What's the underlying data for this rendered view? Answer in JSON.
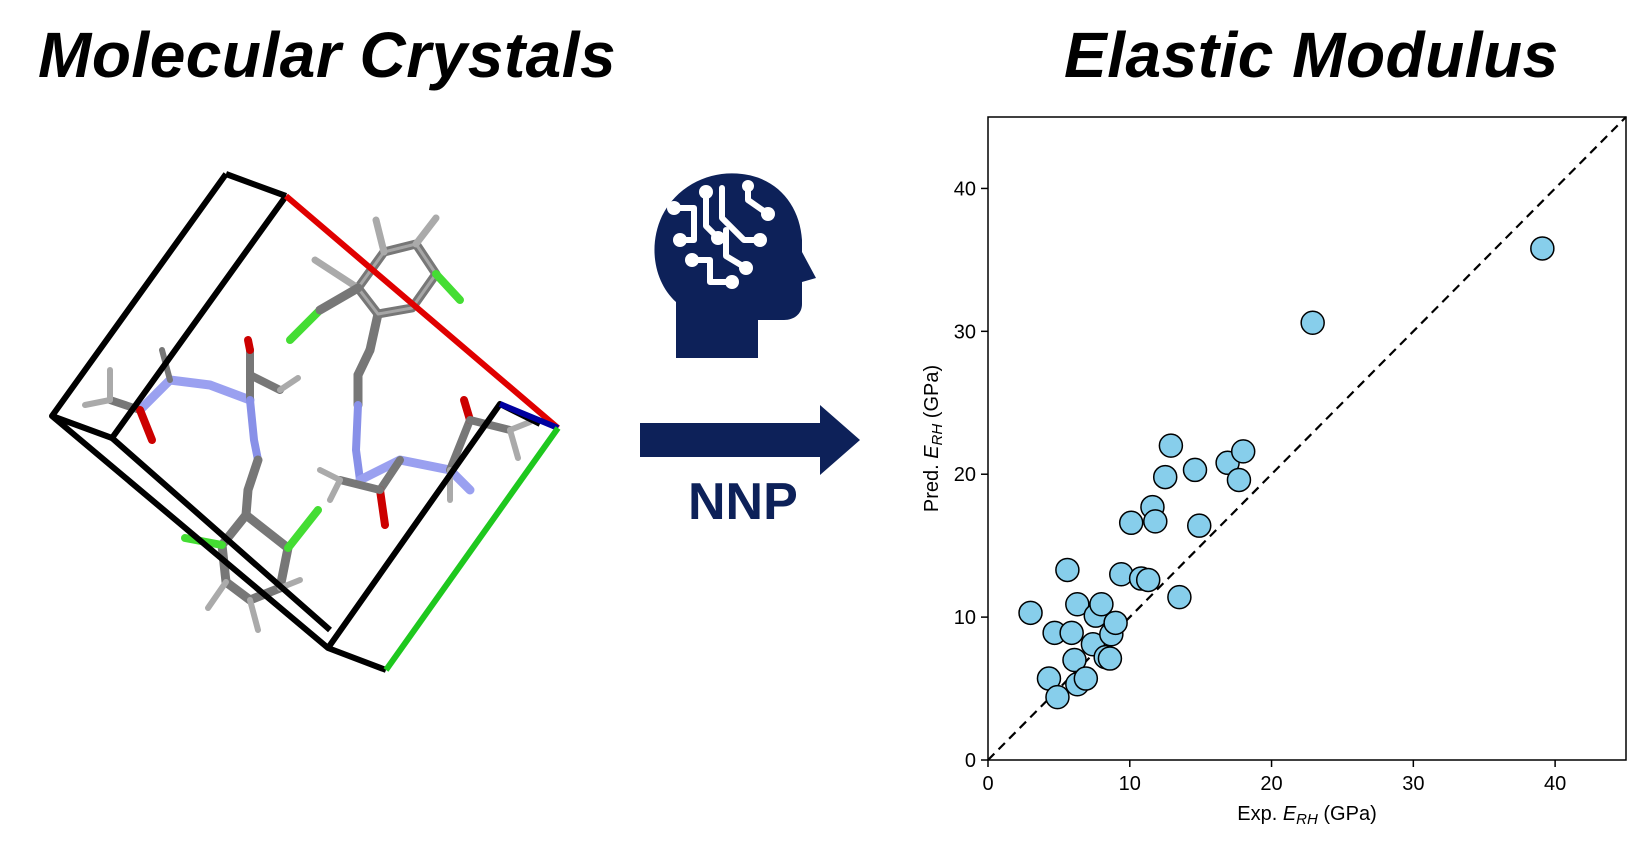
{
  "headings": {
    "left": "Molecular Crystals",
    "right": "Elastic Modulus"
  },
  "model": {
    "label": "NNP",
    "icon": "ai-head-circuit-icon",
    "color": "#0d2159"
  },
  "crystal": {
    "icon": "molecular-crystal-unit-cell",
    "axis_colors": {
      "a": "#e00000",
      "b": "#1ec81e",
      "c": "#0000a0"
    }
  },
  "chart_data": {
    "type": "scatter",
    "xlabel_prefix": "Exp. ",
    "xlabel_var": "E",
    "xlabel_sub": "RH",
    "xlabel_suffix": " (GPa)",
    "ylabel_prefix": "Pred. ",
    "ylabel_var": "E",
    "ylabel_sub": "RH",
    "ylabel_suffix": " (GPa)",
    "xlim": [
      0,
      45
    ],
    "ylim": [
      0,
      45
    ],
    "xticks": [
      0,
      10,
      20,
      30,
      40
    ],
    "yticks": [
      0,
      10,
      20,
      30,
      40
    ],
    "diagonal": true,
    "marker_color": "#87ceeb",
    "points": [
      {
        "x": 3.0,
        "y": 10.3
      },
      {
        "x": 4.3,
        "y": 5.7
      },
      {
        "x": 4.7,
        "y": 8.9
      },
      {
        "x": 4.9,
        "y": 4.4
      },
      {
        "x": 5.6,
        "y": 13.3
      },
      {
        "x": 5.9,
        "y": 8.9
      },
      {
        "x": 6.1,
        "y": 7.0
      },
      {
        "x": 6.3,
        "y": 5.3
      },
      {
        "x": 6.3,
        "y": 10.9
      },
      {
        "x": 6.9,
        "y": 5.7
      },
      {
        "x": 7.4,
        "y": 8.1
      },
      {
        "x": 7.6,
        "y": 10.1
      },
      {
        "x": 8.0,
        "y": 10.9
      },
      {
        "x": 8.3,
        "y": 7.2
      },
      {
        "x": 8.6,
        "y": 7.1
      },
      {
        "x": 8.7,
        "y": 8.8
      },
      {
        "x": 9.0,
        "y": 9.6
      },
      {
        "x": 9.4,
        "y": 13.0
      },
      {
        "x": 10.1,
        "y": 16.6
      },
      {
        "x": 10.8,
        "y": 12.7
      },
      {
        "x": 11.3,
        "y": 12.6
      },
      {
        "x": 11.6,
        "y": 17.7
      },
      {
        "x": 11.8,
        "y": 16.7
      },
      {
        "x": 12.5,
        "y": 19.8
      },
      {
        "x": 12.9,
        "y": 22.0
      },
      {
        "x": 13.5,
        "y": 11.4
      },
      {
        "x": 14.6,
        "y": 20.3
      },
      {
        "x": 14.9,
        "y": 16.4
      },
      {
        "x": 16.9,
        "y": 20.8
      },
      {
        "x": 17.7,
        "y": 19.6
      },
      {
        "x": 18.0,
        "y": 21.6
      },
      {
        "x": 22.9,
        "y": 30.6
      },
      {
        "x": 39.1,
        "y": 35.8
      }
    ]
  }
}
